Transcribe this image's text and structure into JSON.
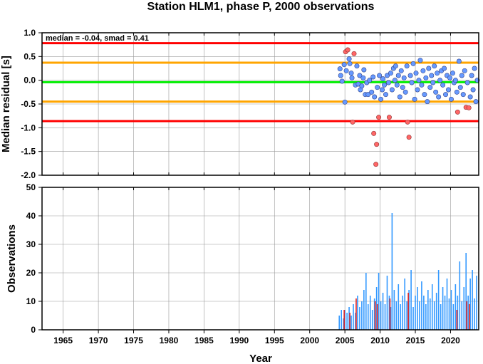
{
  "title": "Station HLM1, phase P, 2000 observations",
  "xlabel": "Year",
  "colors": {
    "upper_limit": "#ff0000",
    "mid_limit": "#ffa500",
    "median_line": "#00ee00",
    "inlier": "#6699ff",
    "outlier": "#ff6666",
    "bar": "#3399ff",
    "bar_outlier": "#dd2222",
    "grid": "#9a9a9a"
  },
  "chart_data": [
    {
      "type": "scatter",
      "ylabel": "Median residual [s]",
      "annotation": "median = -0.04, smad = 0.41",
      "xlim": [
        1962,
        2024
      ],
      "ylim": [
        -2.0,
        1.0
      ],
      "xticks": [
        1965,
        1970,
        1975,
        1980,
        1985,
        1990,
        1995,
        2000,
        2005,
        2010,
        2015,
        2020
      ],
      "yticks": [
        1.0,
        0.5,
        0.0,
        -0.5,
        -1.0,
        -1.5,
        -2.0
      ],
      "ytick_labels": [
        "1.0",
        "0.5",
        "0.0",
        "-0.5",
        "-1.0",
        "-1.5",
        "-2.0"
      ],
      "grid": true,
      "hlines": [
        {
          "y": 0.78,
          "color": "#ff0000"
        },
        {
          "y": 0.37,
          "color": "#ffa500"
        },
        {
          "y": -0.04,
          "color": "#00ee00"
        },
        {
          "y": -0.45,
          "color": "#ffa500"
        },
        {
          "y": -0.86,
          "color": "#ff0000"
        }
      ],
      "outliers": [
        {
          "x": 2005.1,
          "y": 0.6
        },
        {
          "x": 2005.4,
          "y": 0.64
        },
        {
          "x": 2006.3,
          "y": 0.56
        },
        {
          "x": 2006.1,
          "y": -0.88
        },
        {
          "x": 2009.1,
          "y": -1.12
        },
        {
          "x": 2009.5,
          "y": -1.35
        },
        {
          "x": 2009.4,
          "y": -1.77
        },
        {
          "x": 2009.8,
          "y": -0.78
        },
        {
          "x": 2011.3,
          "y": -0.78
        },
        {
          "x": 2013.9,
          "y": -0.88
        },
        {
          "x": 2014.1,
          "y": -1.2
        },
        {
          "x": 2021.0,
          "y": -0.67
        },
        {
          "x": 2022.2,
          "y": -0.57
        },
        {
          "x": 2022.6,
          "y": -0.58
        }
      ],
      "inliers": [
        {
          "x": 2004.3,
          "y": 0.24
        },
        {
          "x": 2004.4,
          "y": 0.1
        },
        {
          "x": 2004.6,
          "y": -0.02
        },
        {
          "x": 2004.9,
          "y": 0.33
        },
        {
          "x": 2005.0,
          "y": -0.46
        },
        {
          "x": 2005.2,
          "y": 0.2
        },
        {
          "x": 2005.6,
          "y": 0.45
        },
        {
          "x": 2005.7,
          "y": 0.35
        },
        {
          "x": 2005.9,
          "y": 0.15
        },
        {
          "x": 2006.0,
          "y": 0.05
        },
        {
          "x": 2006.5,
          "y": -0.1
        },
        {
          "x": 2006.7,
          "y": 0.3
        },
        {
          "x": 2006.9,
          "y": -0.08
        },
        {
          "x": 2007.1,
          "y": 0.1
        },
        {
          "x": 2007.2,
          "y": -0.2
        },
        {
          "x": 2007.4,
          "y": -0.12
        },
        {
          "x": 2007.6,
          "y": 0.05
        },
        {
          "x": 2007.7,
          "y": 0.22
        },
        {
          "x": 2007.9,
          "y": -0.3
        },
        {
          "x": 2008.1,
          "y": -0.05
        },
        {
          "x": 2008.3,
          "y": -0.3
        },
        {
          "x": 2008.5,
          "y": 0.0
        },
        {
          "x": 2008.8,
          "y": -0.25
        },
        {
          "x": 2009.0,
          "y": 0.07
        },
        {
          "x": 2009.2,
          "y": -0.35
        },
        {
          "x": 2009.6,
          "y": -0.15
        },
        {
          "x": 2009.9,
          "y": 0.1
        },
        {
          "x": 2010.1,
          "y": -0.4
        },
        {
          "x": 2010.3,
          "y": -0.2
        },
        {
          "x": 2010.4,
          "y": 0.03
        },
        {
          "x": 2010.6,
          "y": -0.1
        },
        {
          "x": 2010.8,
          "y": -0.3
        },
        {
          "x": 2011.0,
          "y": 0.1
        },
        {
          "x": 2011.2,
          "y": -0.05
        },
        {
          "x": 2011.5,
          "y": 0.15
        },
        {
          "x": 2011.7,
          "y": -0.2
        },
        {
          "x": 2011.9,
          "y": 0.25
        },
        {
          "x": 2012.1,
          "y": 0.0
        },
        {
          "x": 2012.2,
          "y": 0.3
        },
        {
          "x": 2012.4,
          "y": -0.1
        },
        {
          "x": 2012.6,
          "y": 0.1
        },
        {
          "x": 2012.8,
          "y": -0.35
        },
        {
          "x": 2013.0,
          "y": 0.2
        },
        {
          "x": 2013.2,
          "y": -0.15
        },
        {
          "x": 2013.4,
          "y": 0.05
        },
        {
          "x": 2013.6,
          "y": -0.25
        },
        {
          "x": 2013.8,
          "y": 0.3
        },
        {
          "x": 2014.3,
          "y": 0.1
        },
        {
          "x": 2014.5,
          "y": -0.05
        },
        {
          "x": 2014.7,
          "y": 0.35
        },
        {
          "x": 2014.9,
          "y": -0.4
        },
        {
          "x": 2015.1,
          "y": 0.15
        },
        {
          "x": 2015.3,
          "y": -0.2
        },
        {
          "x": 2015.5,
          "y": 0.0
        },
        {
          "x": 2015.7,
          "y": 0.42
        },
        {
          "x": 2015.9,
          "y": -0.1
        },
        {
          "x": 2016.1,
          "y": 0.2
        },
        {
          "x": 2016.3,
          "y": -0.3
        },
        {
          "x": 2016.5,
          "y": 0.05
        },
        {
          "x": 2016.7,
          "y": -0.45
        },
        {
          "x": 2016.9,
          "y": 0.25
        },
        {
          "x": 2017.1,
          "y": -0.15
        },
        {
          "x": 2017.3,
          "y": 0.1
        },
        {
          "x": 2017.5,
          "y": -0.05
        },
        {
          "x": 2017.7,
          "y": 0.3
        },
        {
          "x": 2017.9,
          "y": -0.25
        },
        {
          "x": 2018.1,
          "y": 0.15
        },
        {
          "x": 2018.3,
          "y": -0.35
        },
        {
          "x": 2018.5,
          "y": 0.0
        },
        {
          "x": 2018.7,
          "y": 0.2
        },
        {
          "x": 2018.9,
          "y": -0.1
        },
        {
          "x": 2019.1,
          "y": 0.25
        },
        {
          "x": 2019.3,
          "y": -0.3
        },
        {
          "x": 2019.5,
          "y": 0.1
        },
        {
          "x": 2019.7,
          "y": -0.2
        },
        {
          "x": 2019.9,
          "y": 0.05
        },
        {
          "x": 2020.1,
          "y": -0.4
        },
        {
          "x": 2020.3,
          "y": 0.15
        },
        {
          "x": 2020.5,
          "y": -0.05
        },
        {
          "x": 2020.7,
          "y": 0.0
        },
        {
          "x": 2020.9,
          "y": -0.25
        },
        {
          "x": 2021.2,
          "y": 0.4
        },
        {
          "x": 2021.4,
          "y": -0.15
        },
        {
          "x": 2021.6,
          "y": 0.1
        },
        {
          "x": 2021.8,
          "y": -0.3
        },
        {
          "x": 2022.0,
          "y": 0.2
        },
        {
          "x": 2022.4,
          "y": -0.05
        },
        {
          "x": 2022.8,
          "y": -0.35
        },
        {
          "x": 2023.0,
          "y": 0.1
        },
        {
          "x": 2023.2,
          "y": -0.2
        },
        {
          "x": 2023.4,
          "y": 0.25
        },
        {
          "x": 2023.6,
          "y": -0.45
        },
        {
          "x": 2023.8,
          "y": 0.0
        }
      ]
    },
    {
      "type": "bar",
      "ylabel": "Observations",
      "xlim": [
        1962,
        2024
      ],
      "ylim": [
        0,
        50
      ],
      "xticks": [
        1965,
        1970,
        1975,
        1980,
        1985,
        1990,
        1995,
        2000,
        2005,
        2010,
        2015,
        2020
      ],
      "xtick_labels": [
        "1965",
        "1970",
        "1975",
        "1980",
        "1985",
        "1990",
        "1995",
        "2000",
        "2005",
        "2010",
        "2015",
        "2020"
      ],
      "yticks": [
        0,
        10,
        20,
        30,
        40,
        50
      ],
      "ytick_labels": [
        "0",
        "10",
        "20",
        "30",
        "40",
        "50"
      ],
      "grid": true,
      "bars": [
        {
          "x": 2004.2,
          "y": 5
        },
        {
          "x": 2004.5,
          "y": 7
        },
        {
          "x": 2004.8,
          "y": 4
        },
        {
          "x": 2005.0,
          "y": 7
        },
        {
          "x": 2005.3,
          "y": 6
        },
        {
          "x": 2005.6,
          "y": 8
        },
        {
          "x": 2005.9,
          "y": 5
        },
        {
          "x": 2006.2,
          "y": 9
        },
        {
          "x": 2006.5,
          "y": 6
        },
        {
          "x": 2006.8,
          "y": 12
        },
        {
          "x": 2007.1,
          "y": 8
        },
        {
          "x": 2007.4,
          "y": 10
        },
        {
          "x": 2007.7,
          "y": 14
        },
        {
          "x": 2008.0,
          "y": 20
        },
        {
          "x": 2008.3,
          "y": 9
        },
        {
          "x": 2008.6,
          "y": 12
        },
        {
          "x": 2008.9,
          "y": 7
        },
        {
          "x": 2009.2,
          "y": 11
        },
        {
          "x": 2009.5,
          "y": 15
        },
        {
          "x": 2009.8,
          "y": 20
        },
        {
          "x": 2010.1,
          "y": 10
        },
        {
          "x": 2010.4,
          "y": 13
        },
        {
          "x": 2010.7,
          "y": 9
        },
        {
          "x": 2011.0,
          "y": 19
        },
        {
          "x": 2011.3,
          "y": 12
        },
        {
          "x": 2011.5,
          "y": 8
        },
        {
          "x": 2011.7,
          "y": 41
        },
        {
          "x": 2012.0,
          "y": 14
        },
        {
          "x": 2012.3,
          "y": 10
        },
        {
          "x": 2012.6,
          "y": 16
        },
        {
          "x": 2012.9,
          "y": 9
        },
        {
          "x": 2013.2,
          "y": 12
        },
        {
          "x": 2013.5,
          "y": 18
        },
        {
          "x": 2013.8,
          "y": 10
        },
        {
          "x": 2014.1,
          "y": 14
        },
        {
          "x": 2014.4,
          "y": 21
        },
        {
          "x": 2014.7,
          "y": 8
        },
        {
          "x": 2015.0,
          "y": 12
        },
        {
          "x": 2015.3,
          "y": 15
        },
        {
          "x": 2015.6,
          "y": 10
        },
        {
          "x": 2015.9,
          "y": 17
        },
        {
          "x": 2016.2,
          "y": 12
        },
        {
          "x": 2016.5,
          "y": 9
        },
        {
          "x": 2016.8,
          "y": 14
        },
        {
          "x": 2017.1,
          "y": 11
        },
        {
          "x": 2017.4,
          "y": 16
        },
        {
          "x": 2017.7,
          "y": 10
        },
        {
          "x": 2018.0,
          "y": 13
        },
        {
          "x": 2018.3,
          "y": 21
        },
        {
          "x": 2018.6,
          "y": 9
        },
        {
          "x": 2018.9,
          "y": 15
        },
        {
          "x": 2019.2,
          "y": 12
        },
        {
          "x": 2019.5,
          "y": 18
        },
        {
          "x": 2019.8,
          "y": 11
        },
        {
          "x": 2020.1,
          "y": 14
        },
        {
          "x": 2020.4,
          "y": 9
        },
        {
          "x": 2020.7,
          "y": 16
        },
        {
          "x": 2021.0,
          "y": 12
        },
        {
          "x": 2021.3,
          "y": 24
        },
        {
          "x": 2021.6,
          "y": 10
        },
        {
          "x": 2021.9,
          "y": 15
        },
        {
          "x": 2022.2,
          "y": 27
        },
        {
          "x": 2022.5,
          "y": 12
        },
        {
          "x": 2022.8,
          "y": 18
        },
        {
          "x": 2023.1,
          "y": 21
        },
        {
          "x": 2023.4,
          "y": 11
        },
        {
          "x": 2023.7,
          "y": 19
        }
      ],
      "outlier_bars": [
        {
          "x": 2004.9,
          "y": 7
        },
        {
          "x": 2005.7,
          "y": 6
        },
        {
          "x": 2006.6,
          "y": 11
        },
        {
          "x": 2009.3,
          "y": 10
        },
        {
          "x": 2009.6,
          "y": 9
        },
        {
          "x": 2011.4,
          "y": 11
        },
        {
          "x": 2014.0,
          "y": 13
        },
        {
          "x": 2020.9,
          "y": 7
        },
        {
          "x": 2022.3,
          "y": 10
        },
        {
          "x": 2022.7,
          "y": 9
        }
      ]
    }
  ]
}
